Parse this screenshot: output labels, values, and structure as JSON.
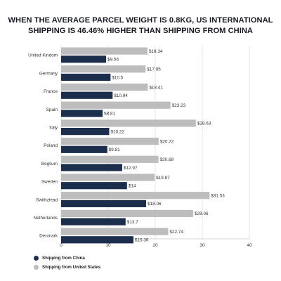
{
  "title_line1": "WHEN THE AVERAGE PARCEL WEIGHT IS 0.8KG, US INTERNATIONAL",
  "title_line2": "SHIPPING IS 46.46% HIGHER THAN SHIPPING FROM CHINA",
  "colors": {
    "china": "#1b2e4b",
    "us": "#bdbdbd",
    "axis_text": "#333333",
    "grid": "#d9d9d9"
  },
  "legend": [
    {
      "label": "Shipping from China",
      "color": "#1b2e4b"
    },
    {
      "label": "Shipping from United States",
      "color": "#bdbdbd"
    }
  ],
  "chart_data": {
    "type": "bar",
    "orientation": "horizontal",
    "categories": [
      "United Kindom",
      "Germany",
      "France",
      "Spain",
      "Italy",
      "Poland",
      "Beglium",
      "Sweden",
      "Swithzlead",
      "Netherlands",
      "Denmark"
    ],
    "series": [
      {
        "name": "Shipping from United States",
        "values": [
          18.34,
          17.95,
          18.41,
          23.23,
          28.63,
          20.72,
          20.68,
          19.87,
          31.53,
          28.06,
          22.74
        ],
        "labels": [
          "$18.34",
          "$17.95",
          "$18.41",
          "$23.23",
          "$28.63",
          "$20.72",
          "$20.68",
          "$19.87",
          "$31.53",
          "$28.06",
          "$22.74"
        ]
      },
      {
        "name": "Shipping from China",
        "values": [
          9.56,
          10.5,
          10.94,
          8.81,
          10.22,
          9.81,
          12.97,
          14,
          18.06,
          13.7,
          15.36
        ],
        "labels": [
          "$9.56",
          "$10.5",
          "$10.94",
          "$8.81",
          "$10.22",
          "$9.81",
          "$12.97",
          "$14",
          "$18.06",
          "$13.7",
          "$15.36"
        ]
      }
    ],
    "xlim": [
      0,
      40
    ],
    "xticks": [
      0,
      10,
      20,
      30,
      40
    ],
    "title": "WHEN THE AVERAGE PARCEL WEIGHT IS 0.8KG, US INTERNATIONAL SHIPPING IS 46.46% HIGHER THAN SHIPPING FROM CHINA",
    "xlabel": "",
    "ylabel": "",
    "grid": true,
    "legend_position": "bottom-left"
  }
}
